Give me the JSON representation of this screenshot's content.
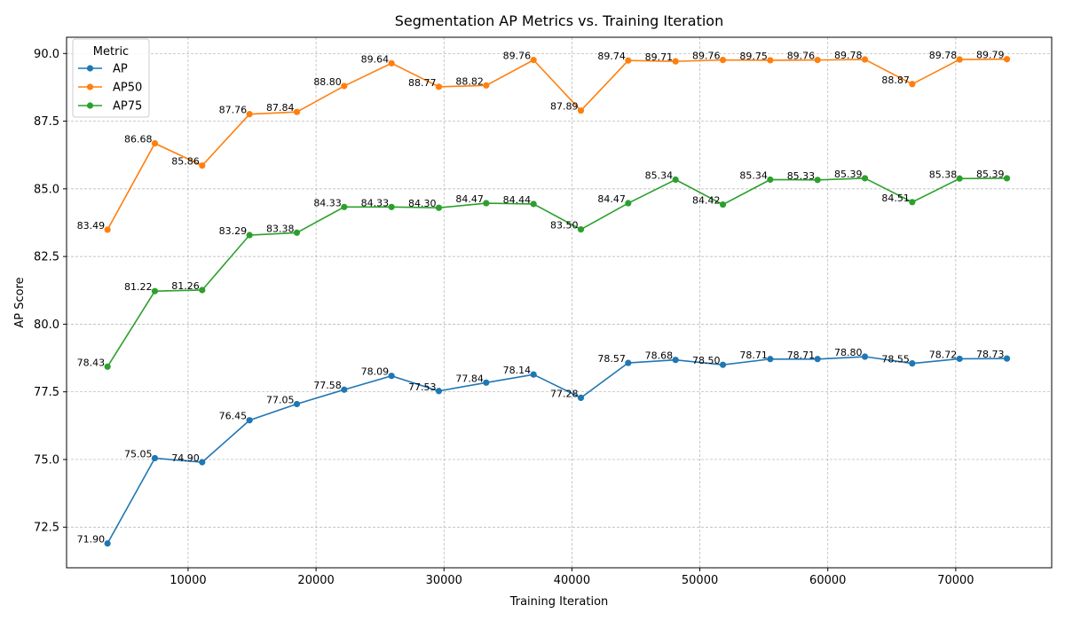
{
  "chart_data": {
    "type": "line",
    "title": "Segmentation AP Metrics vs. Training Iteration",
    "xlabel": "Training Iteration",
    "ylabel": "AP Score",
    "xlim": [
      500,
      77500
    ],
    "ylim": [
      71.0,
      90.6
    ],
    "x_ticks": [
      10000,
      20000,
      30000,
      40000,
      50000,
      60000,
      70000
    ],
    "y_ticks": [
      72.5,
      75.0,
      77.5,
      80.0,
      82.5,
      85.0,
      87.5,
      90.0
    ],
    "grid": true,
    "legend": {
      "title": "Metric",
      "placement": "top-left"
    },
    "x": [
      3700,
      7400,
      11100,
      14800,
      18500,
      22200,
      25900,
      29600,
      33300,
      37000,
      40700,
      44400,
      48100,
      51800,
      55500,
      59200,
      62900,
      66600,
      70300,
      74000
    ],
    "series": [
      {
        "name": "AP",
        "color": "#1f77b4",
        "values": [
          71.9,
          75.05,
          74.9,
          76.45,
          77.05,
          77.58,
          78.09,
          77.53,
          77.84,
          78.14,
          77.28,
          78.57,
          78.68,
          78.5,
          78.71,
          78.71,
          78.8,
          78.55,
          78.72,
          78.73
        ],
        "labels": [
          "71.90",
          "75.05",
          "74.90",
          "76.45",
          "77.05",
          "77.58",
          "78.09",
          "77.53",
          "77.84",
          "78.14",
          "77.28",
          "78.57",
          "78.68",
          "78.50",
          "78.71",
          "78.71",
          "78.80",
          "78.55",
          "78.72",
          "78.73"
        ]
      },
      {
        "name": "AP50",
        "color": "#ff7f0e",
        "values": [
          83.49,
          86.68,
          85.86,
          87.76,
          87.84,
          88.8,
          89.64,
          88.77,
          88.82,
          89.76,
          87.89,
          89.74,
          89.71,
          89.76,
          89.75,
          89.76,
          89.78,
          88.87,
          89.78,
          89.79
        ],
        "labels": [
          "83.49",
          "86.68",
          "85.86",
          "87.76",
          "87.84",
          "88.80",
          "89.64",
          "88.77",
          "88.82",
          "89.76",
          "87.89",
          "89.74",
          "89.71",
          "89.76",
          "89.75",
          "89.76",
          "89.78",
          "88.87",
          "89.78",
          "89.79"
        ]
      },
      {
        "name": "AP75",
        "color": "#2ca02c",
        "values": [
          78.43,
          81.22,
          81.26,
          83.29,
          83.38,
          84.33,
          84.33,
          84.3,
          84.47,
          84.44,
          83.5,
          84.47,
          85.34,
          84.42,
          85.34,
          85.33,
          85.39,
          84.51,
          85.38,
          85.39
        ],
        "labels": [
          "78.43",
          "81.22",
          "81.26",
          "83.29",
          "83.38",
          "84.33",
          "84.33",
          "84.30",
          "84.47",
          "84.44",
          "83.50",
          "84.47",
          "85.34",
          "84.42",
          "85.34",
          "85.33",
          "85.39",
          "84.51",
          "85.38",
          "85.39"
        ]
      }
    ]
  }
}
